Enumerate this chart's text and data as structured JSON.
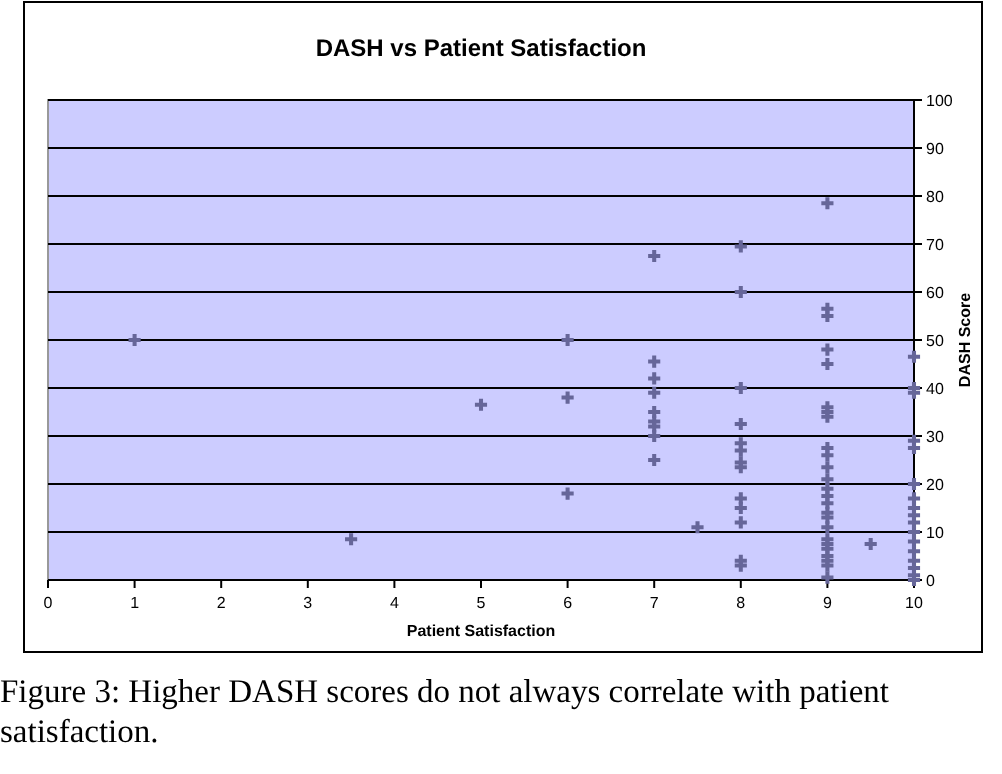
{
  "chart_data": {
    "type": "scatter",
    "title": "DASH vs Patient Satisfaction",
    "xlabel": "Patient Satisfaction",
    "ylabel": "DASH Score",
    "annotations": [
      "Figure 3: Higher DASH scores do not always correlate with patient satisfaction."
    ],
    "x": [
      1,
      3.5,
      5,
      6,
      6,
      6,
      7,
      7,
      7,
      7,
      7,
      7,
      7,
      7,
      7,
      7.5,
      8,
      8,
      8,
      8,
      8,
      8,
      8,
      8,
      8,
      8,
      8,
      8,
      8,
      9,
      9,
      9,
      9,
      9,
      9,
      9,
      9,
      9,
      9,
      9,
      9,
      9,
      9,
      9,
      9,
      9,
      9,
      9,
      9,
      9,
      9,
      9,
      9,
      9,
      9.5,
      10,
      10,
      10,
      10,
      10,
      10,
      10,
      10,
      10,
      10,
      10,
      10,
      10,
      10,
      10,
      10,
      10
    ],
    "values": [
      50,
      8.5,
      36.5,
      50,
      38,
      18,
      67.5,
      45.5,
      42,
      39,
      35,
      33,
      32,
      30,
      25,
      11,
      69.5,
      60,
      40,
      32.5,
      28.5,
      27,
      24.5,
      23.5,
      17,
      15,
      12,
      4,
      3,
      78.5,
      56.5,
      55,
      48,
      45,
      36,
      35,
      34,
      27.5,
      26,
      23.5,
      21,
      19,
      17.5,
      16,
      14,
      13,
      11,
      8.5,
      7.5,
      6.5,
      5,
      4,
      3,
      0.5,
      7.5,
      46.5,
      40,
      39,
      29,
      27.5,
      20,
      17,
      15,
      13.5,
      12,
      10,
      8,
      6,
      4,
      2.5,
      1,
      0
    ],
    "color": "#666699",
    "marker": "cross",
    "xlim": [
      0,
      10
    ],
    "xticks": [
      0,
      1,
      2,
      3,
      4,
      5,
      6,
      7,
      8,
      9,
      10
    ],
    "ylim": [
      0,
      100
    ],
    "yticks": [
      0,
      10,
      20,
      30,
      40,
      50,
      60,
      70,
      80,
      90,
      100
    ],
    "grid": "y"
  }
}
